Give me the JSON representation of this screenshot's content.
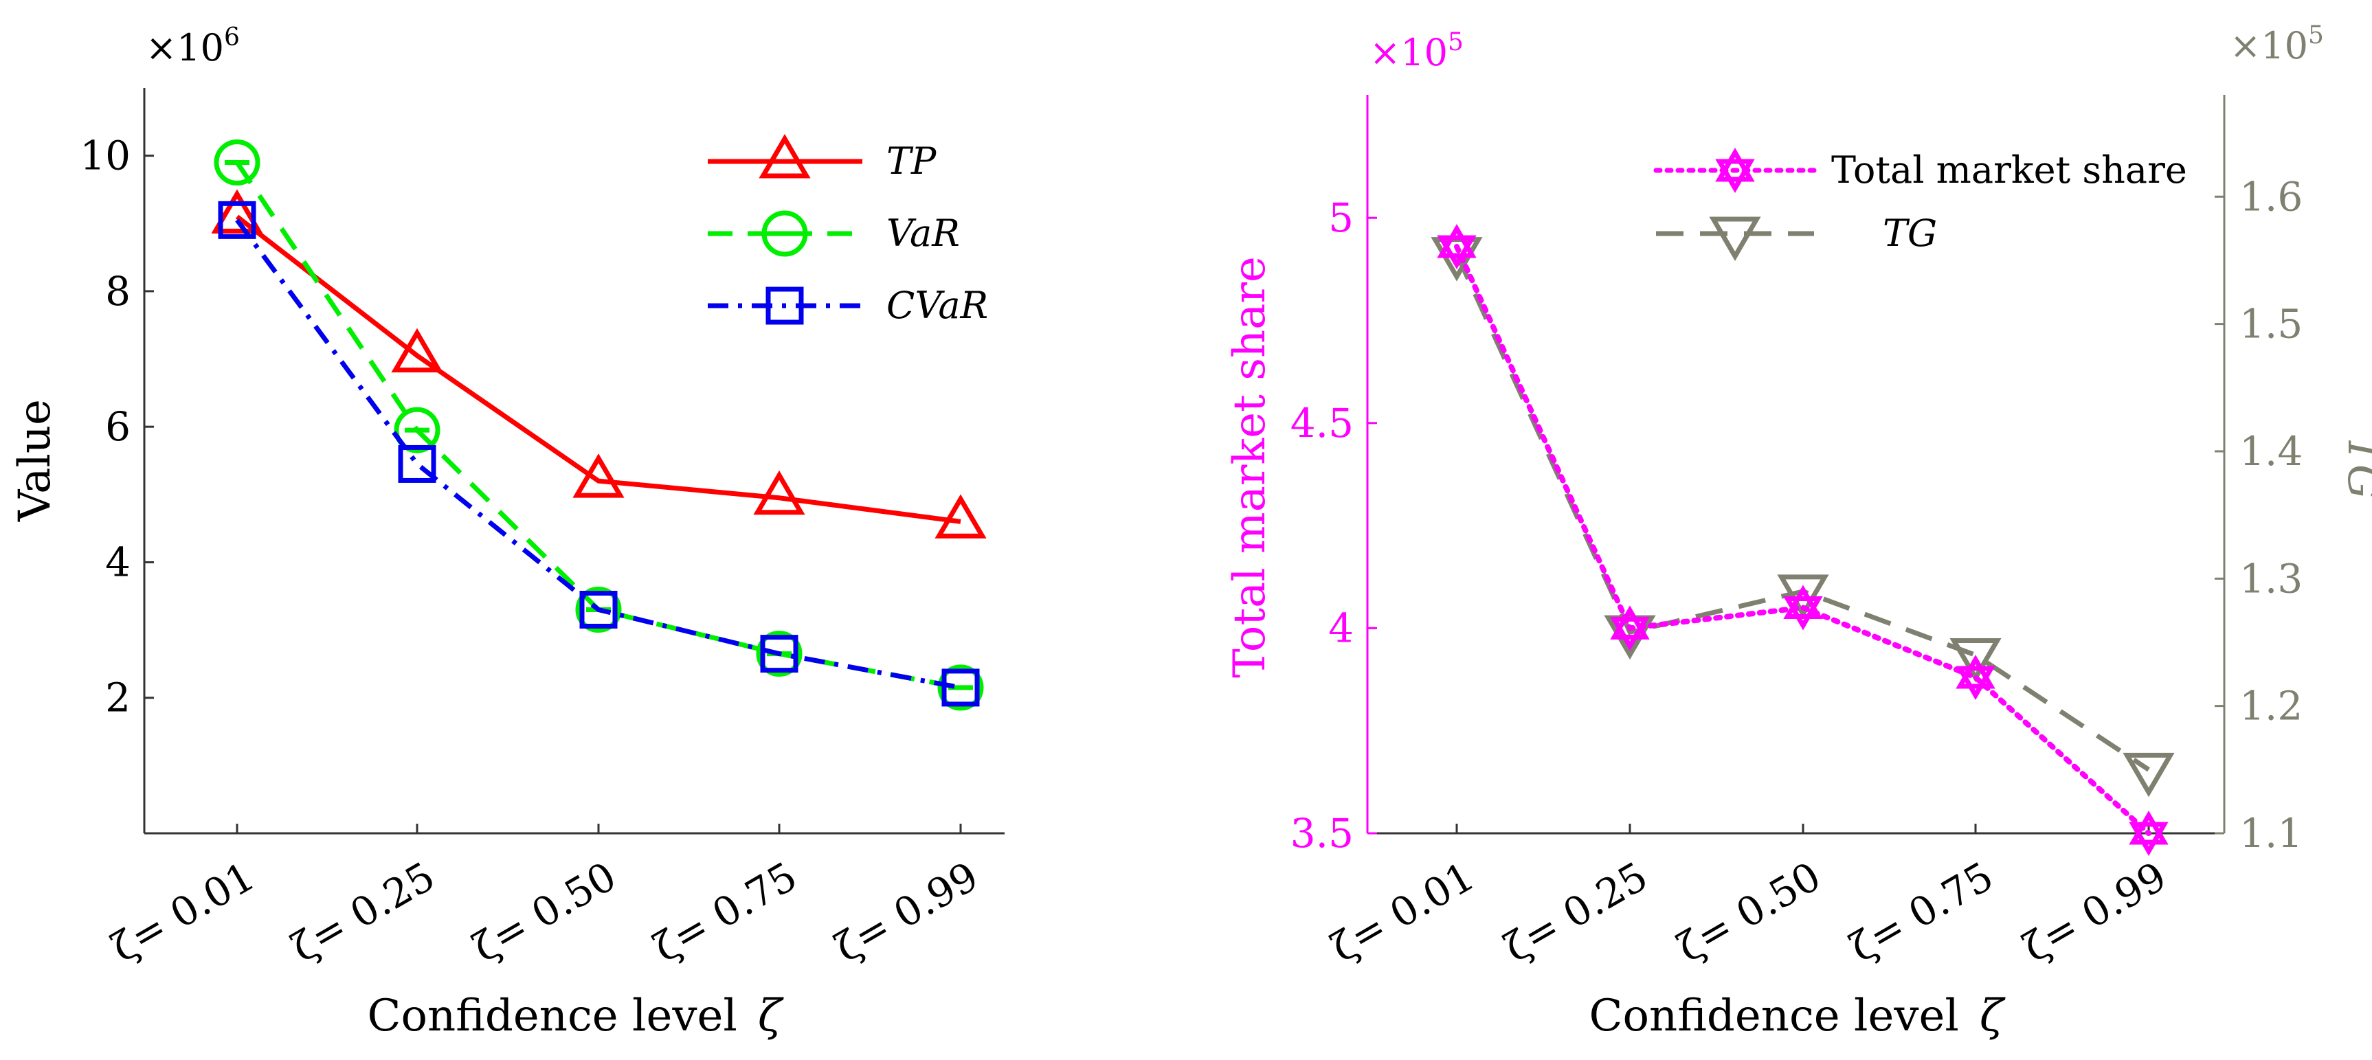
{
  "chart_data": [
    {
      "type": "line",
      "categories": [
        "ζ= 0.01",
        "ζ= 0.25",
        "ζ= 0.50",
        "ζ= 0.75",
        "ζ= 0.99"
      ],
      "xlabel": "Confidence level",
      "xsymbol": "ζ",
      "ylabel": "Value",
      "y_multiplier": "×10",
      "y_multiplier_exp": "6",
      "y_scale": 1000000,
      "ylim": [
        0,
        11
      ],
      "yticks": [
        2,
        4,
        6,
        8,
        10
      ],
      "legend_position": "top-right",
      "series": [
        {
          "name": "TP",
          "color": "#ff0000",
          "dash": "solid",
          "marker": "triangle-up",
          "values": [
            9.1,
            7.05,
            5.2,
            4.95,
            4.6
          ]
        },
        {
          "name": "VaR",
          "color": "#00ee00",
          "dash": "dashed",
          "marker": "circle",
          "values": [
            9.9,
            5.95,
            3.3,
            2.65,
            2.15
          ]
        },
        {
          "name": "CVaR",
          "color": "#0000ee",
          "dash": "dashdot",
          "marker": "square",
          "values": [
            9.05,
            5.45,
            3.3,
            2.65,
            2.15
          ]
        }
      ]
    },
    {
      "type": "line",
      "categories": [
        "ζ= 0.01",
        "ζ= 0.25",
        "ζ= 0.50",
        "ζ= 0.75",
        "ζ= 0.99"
      ],
      "xlabel": "Confidence level",
      "xsymbol": "ζ",
      "ylabel_left": "Total market share",
      "ylabel_right": "TG",
      "y_left_multiplier": "×10",
      "y_left_multiplier_exp": "5",
      "y_right_multiplier": "×10",
      "y_right_multiplier_exp": "5",
      "y_left_scale": 100000,
      "y_right_scale": 100000,
      "ylim_left": [
        3.5,
        5.3
      ],
      "ylim_right": [
        1.1,
        1.68
      ],
      "yticks_left": [
        3.5,
        4,
        4.5,
        5
      ],
      "yticks_left_labels": [
        "3.5",
        "4",
        "4.5",
        "5"
      ],
      "yticks_right": [
        1.1,
        1.2,
        1.3,
        1.4,
        1.5,
        1.6
      ],
      "yticks_right_labels": [
        "1.1",
        "1.2",
        "1.3",
        "1.4",
        "1.5",
        "1.6"
      ],
      "left_axis_color": "#ff00ff",
      "right_axis_color": "#808070",
      "legend_position": "top-right",
      "series": [
        {
          "name": "Total market share",
          "axis": "left",
          "color": "#ff00ff",
          "dash": "dotted",
          "marker": "hexagram",
          "values": [
            4.93,
            4.0,
            4.05,
            3.88,
            3.5
          ]
        },
        {
          "name": "TG",
          "axis": "right",
          "color": "#808070",
          "dash": "dashed",
          "marker": "triangle-down",
          "values": [
            1.555,
            1.258,
            1.29,
            1.24,
            1.15
          ]
        }
      ]
    }
  ]
}
